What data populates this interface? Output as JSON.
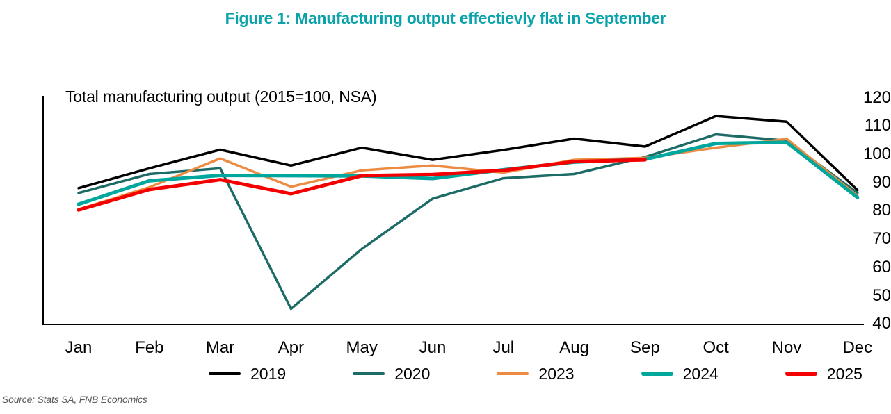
{
  "title": "Figure 1: Manufacturing output effectievly flat in September",
  "title_color": "#0aa3ab",
  "source": "Source: Stats SA, FNB Economics",
  "axis_color": "#000000",
  "chart_data": {
    "type": "line",
    "title": "Figure 1: Manufacturing output effectievly flat in September",
    "inner_label": "Total manufacturing output (2015=100, NSA)",
    "categories": [
      "Jan",
      "Feb",
      "Mar",
      "Apr",
      "May",
      "Jun",
      "Jul",
      "Aug",
      "Sep",
      "Oct",
      "Nov",
      "Dec"
    ],
    "yticks": [
      120,
      110,
      100,
      90,
      80,
      70,
      60,
      50,
      40
    ],
    "ylim": [
      40,
      120
    ],
    "xlabel": "",
    "ylabel": "",
    "grid": false,
    "legend_position": "bottom",
    "series": [
      {
        "name": "2019",
        "color": "#000000",
        "thickness": 3.5,
        "values": [
          88.0,
          95.0,
          101.6,
          96.0,
          102.3,
          98.0,
          101.5,
          105.5,
          102.7,
          113.5,
          111.5,
          87.3
        ]
      },
      {
        "name": "2020",
        "color": "#1d6b67",
        "thickness": 3.5,
        "values": [
          86.3,
          93.0,
          95.0,
          45.3,
          66.5,
          84.3,
          91.5,
          93.0,
          99.0,
          107.0,
          104.8,
          86.3
        ]
      },
      {
        "name": "2023",
        "color": "#ec8b41",
        "thickness": 3.5,
        "values": [
          80.5,
          88.3,
          98.5,
          88.5,
          94.3,
          96.0,
          93.5,
          98.0,
          98.7,
          102.3,
          105.4,
          85.3
        ]
      },
      {
        "name": "2024",
        "color": "#00a79c",
        "thickness": 5,
        "values": [
          82.3,
          90.6,
          92.5,
          92.4,
          92.3,
          91.4,
          94.5,
          97.2,
          98.2,
          103.8,
          104.2,
          84.7
        ]
      },
      {
        "name": "2025",
        "color": "#f40000",
        "thickness": 5,
        "values": [
          80.3,
          87.5,
          91.0,
          86.0,
          92.4,
          92.8,
          94.3,
          97.4,
          98.0,
          null,
          null,
          null
        ]
      }
    ]
  }
}
